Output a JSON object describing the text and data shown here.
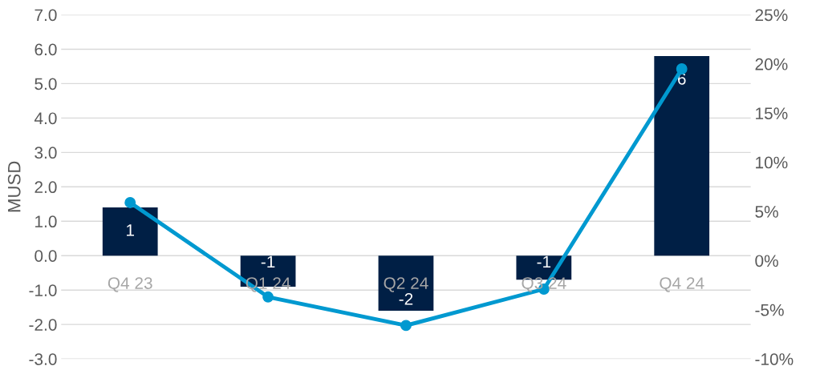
{
  "chart_data": {
    "type": "bar",
    "ylabel": "MUSD",
    "categories": [
      "Q4 23",
      "Q1 24",
      "Q2 24",
      "Q3 24",
      "Q4 24"
    ],
    "series": [
      {
        "color": "#001f45",
        "values": [
          1.4,
          -0.9,
          -1.6,
          -0.7,
          5.8
        ],
        "value_labels": [
          "1",
          "-1",
          "-2",
          "-1",
          "6"
        ]
      },
      {
        "type": "line",
        "axis": "y2",
        "color": "#0099d0",
        "values": [
          5.9,
          -3.7,
          -6.6,
          -2.9,
          19.5
        ]
      }
    ],
    "ylim": [
      -3,
      7
    ],
    "yticks": [
      {
        "value": -3,
        "label": "-3.0"
      },
      {
        "value": -2,
        "label": "-2.0"
      },
      {
        "value": -1,
        "label": "-1.0"
      },
      {
        "value": 0,
        "label": "0.0"
      },
      {
        "value": 1,
        "label": "1.0"
      },
      {
        "value": 2,
        "label": "2.0"
      },
      {
        "value": 3,
        "label": "3.0"
      },
      {
        "value": 4,
        "label": "4.0"
      },
      {
        "value": 5,
        "label": "5.0"
      },
      {
        "value": 6,
        "label": "6.0"
      },
      {
        "value": 7,
        "label": "7.0"
      }
    ],
    "y2lim": [
      -10,
      25
    ],
    "y2ticks": [
      {
        "value": -10,
        "label": "-10%"
      },
      {
        "value": -5,
        "label": "-5%"
      },
      {
        "value": 0,
        "label": "0%"
      },
      {
        "value": 5,
        "label": "5%"
      },
      {
        "value": 10,
        "label": "10%"
      },
      {
        "value": 15,
        "label": "15%"
      },
      {
        "value": 20,
        "label": "20%"
      },
      {
        "value": 25,
        "label": "25%"
      }
    ],
    "grid": "y",
    "marker": "circle",
    "legend": false
  }
}
